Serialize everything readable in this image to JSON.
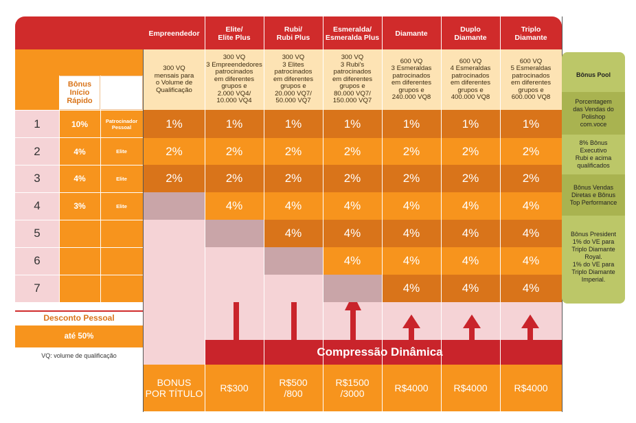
{
  "columns": [
    {
      "title": "Empreendedor",
      "qual": "300 VQ\nmensais para\no Volume de\nQualificação",
      "bonus": "BONUS\nPOR TÍTULO"
    },
    {
      "title": "Elite/\nElite Plus",
      "qual": "300 VQ\n3 Empreendedores\npatrocinados\nem diferentes\ngrupos e\n2.000 VQ4/\n10.000 VQ4",
      "bonus": "R$300"
    },
    {
      "title": "Rubi/\nRubi Plus",
      "qual": "300 VQ\n3 Elites\npatrocinados\nem diferentes\ngrupos e\n20.000 VQ7/\n50.000 VQ7",
      "bonus": "R$500\n/800"
    },
    {
      "title": "Esmeralda/\nEsmeralda Plus",
      "qual": "300 VQ\n3 Rubi's\npatrocinados\nem diferentes\ngrupos e\n80.000 VQ7/\n150.000 VQ7",
      "bonus": "R$1500\n/3000"
    },
    {
      "title": "Diamante",
      "qual": "600 VQ\n3 Esmeraldas\npatrocinados\nem diferentes\ngrupos e\n240.000 VQ8",
      "bonus": "R$4000"
    },
    {
      "title": "Duplo\nDiamante",
      "qual": "600 VQ\n4 Esmeraldas\npatrocinados\nem diferentes\ngrupos e\n400.000 VQ8",
      "bonus": "R$4000"
    },
    {
      "title": "Triplo\nDiamante",
      "qual": "600 VQ\n5 Esmeraldas\npatrocinados\nem diferentes\ngrupos e\n600.000 VQ8",
      "bonus": "R$4000"
    }
  ],
  "levels": [
    "1",
    "2",
    "3",
    "4",
    "5",
    "6",
    "7"
  ],
  "level_values": [
    [
      "1%",
      "1%",
      "1%",
      "1%",
      "1%",
      "1%",
      "1%"
    ],
    [
      "2%",
      "2%",
      "2%",
      "2%",
      "2%",
      "2%",
      "2%"
    ],
    [
      "2%",
      "2%",
      "2%",
      "2%",
      "2%",
      "2%",
      "2%"
    ],
    [
      "",
      "4%",
      "4%",
      "4%",
      "4%",
      "4%",
      "4%"
    ],
    [
      "",
      "",
      "4%",
      "4%",
      "4%",
      "4%",
      "4%"
    ],
    [
      "",
      "",
      "",
      "4%",
      "4%",
      "4%",
      "4%"
    ],
    [
      "",
      "",
      "",
      "",
      "4%",
      "4%",
      "4%"
    ]
  ],
  "fast_bonus": {
    "title": "Bônus\nInício\nRápido",
    "rows": [
      {
        "pct": "10%",
        "label": "Patrocinador\nPessoal"
      },
      {
        "pct": "4%",
        "label": "Elite"
      },
      {
        "pct": "4%",
        "label": "Elite"
      },
      {
        "pct": "3%",
        "label": "Elite"
      }
    ]
  },
  "discount": {
    "title": "Desconto Pessoal",
    "value": "até 50%",
    "note": "VQ: volume de qualificação"
  },
  "compression_label": "Compressão Dinâmica",
  "side_panel": [
    "Bônus Pool",
    "Porcentagem\ndas Vendas do\nPolishop\ncom.voce",
    "8% Bônus\nExecutivo\nRubi e acima\nqualificados",
    "Bônus Vendas\nDiretas e Bônus\nTop Performance",
    "Bônus President\n1% do VE para\nTriplo Diamante\nRoyal.\n1% do VE para\nTriplo Diamante\nImperial."
  ],
  "colors": {
    "red": "#d02b2b",
    "orange": "#f7941d",
    "dark_orange": "#d9741a",
    "pink": "#f5d3d6",
    "gray_pink": "#c9a5a8",
    "cream": "#fde3b4",
    "green_panel": "#bcc768"
  }
}
